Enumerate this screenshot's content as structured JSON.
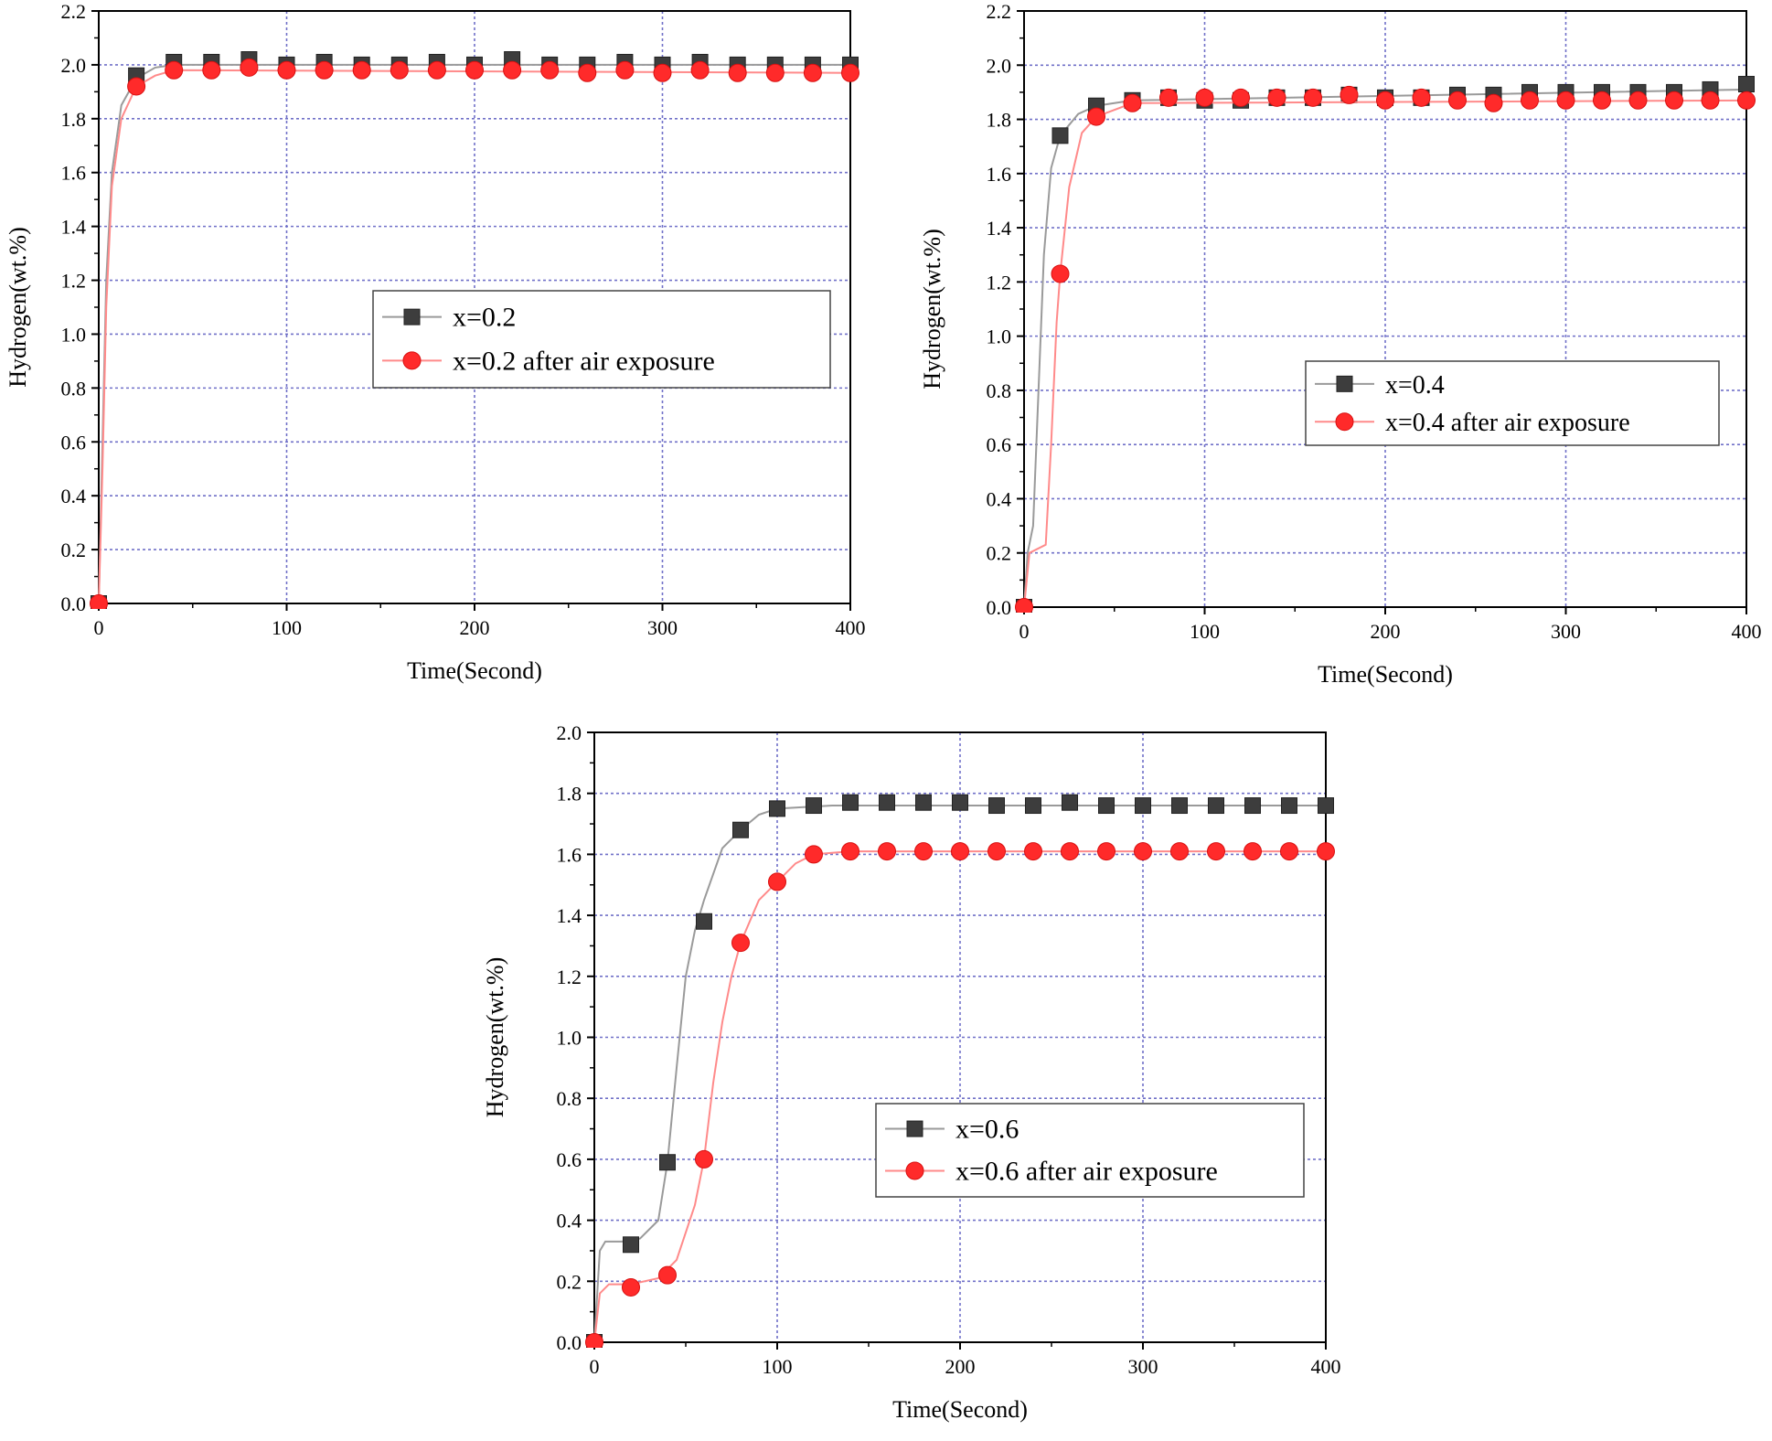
{
  "colors": {
    "series_base": "#3d3d3d",
    "series_base_line": "#9a9a9a",
    "series_exposed": "#ff2a2a",
    "series_exposed_line": "#ff8a8a",
    "grid": "#7070c8"
  },
  "chart_data": [
    {
      "type": "line",
      "xlabel": "Time(Second)",
      "ylabel": "Hydrogen(wt.%)",
      "xlim": [
        0,
        400
      ],
      "ylim": [
        0,
        2.2
      ],
      "xticks": [
        "0",
        "100",
        "200",
        "300",
        "400"
      ],
      "yticks": [
        "0.0",
        "0.2",
        "0.4",
        "0.6",
        "0.8",
        "1.0",
        "1.2",
        "1.4",
        "1.6",
        "1.8",
        "2.0",
        "2.2"
      ],
      "grid": true,
      "legend_position": "center-right",
      "markers_x": [
        0,
        20,
        40,
        60,
        80,
        100,
        120,
        140,
        160,
        180,
        200,
        220,
        240,
        260,
        280,
        300,
        320,
        340,
        360,
        380,
        400
      ],
      "series": [
        {
          "name": "x=0.2",
          "marker": "square",
          "values": [
            0.0,
            1.96,
            2.01,
            2.01,
            2.02,
            2.0,
            2.01,
            2.0,
            2.0,
            2.01,
            2.0,
            2.02,
            2.0,
            2.0,
            2.01,
            2.0,
            2.01,
            2.0,
            2.0,
            2.0,
            2.0
          ],
          "curve": [
            [
              0,
              0.0
            ],
            [
              2,
              0.6
            ],
            [
              4,
              1.2
            ],
            [
              7,
              1.6
            ],
            [
              12,
              1.85
            ],
            [
              20,
              1.95
            ],
            [
              30,
              1.99
            ],
            [
              40,
              2.0
            ],
            [
              400,
              2.0
            ]
          ]
        },
        {
          "name": "x=0.2 after air exposure",
          "marker": "circle",
          "values": [
            0.0,
            1.92,
            1.98,
            1.98,
            1.99,
            1.98,
            1.98,
            1.98,
            1.98,
            1.98,
            1.98,
            1.98,
            1.98,
            1.97,
            1.98,
            1.97,
            1.98,
            1.97,
            1.97,
            1.97,
            1.97
          ],
          "curve": [
            [
              0,
              0.0
            ],
            [
              2,
              0.5
            ],
            [
              4,
              1.1
            ],
            [
              7,
              1.55
            ],
            [
              12,
              1.8
            ],
            [
              20,
              1.92
            ],
            [
              30,
              1.96
            ],
            [
              40,
              1.98
            ],
            [
              400,
              1.97
            ]
          ]
        }
      ]
    },
    {
      "type": "line",
      "xlabel": "Time(Second)",
      "ylabel": "Hydrogen(wt.%)",
      "xlim": [
        0,
        400
      ],
      "ylim": [
        0,
        2.2
      ],
      "xticks": [
        "0",
        "100",
        "200",
        "300",
        "400"
      ],
      "yticks": [
        "0.0",
        "0.2",
        "0.4",
        "0.6",
        "0.8",
        "1.0",
        "1.2",
        "1.4",
        "1.6",
        "1.8",
        "2.0",
        "2.2"
      ],
      "grid": true,
      "legend_position": "center-right",
      "markers_x": [
        0,
        20,
        40,
        60,
        80,
        100,
        120,
        140,
        160,
        180,
        200,
        220,
        240,
        260,
        280,
        300,
        320,
        340,
        360,
        380,
        400
      ],
      "series": [
        {
          "name": "x=0.4",
          "marker": "square",
          "values": [
            0.0,
            1.74,
            1.85,
            1.87,
            1.88,
            1.87,
            1.87,
            1.88,
            1.88,
            1.89,
            1.88,
            1.88,
            1.89,
            1.89,
            1.9,
            1.9,
            1.9,
            1.9,
            1.9,
            1.91,
            1.93
          ],
          "curve": [
            [
              0,
              0.0
            ],
            [
              2,
              0.2
            ],
            [
              5,
              0.3
            ],
            [
              8,
              0.8
            ],
            [
              11,
              1.3
            ],
            [
              15,
              1.62
            ],
            [
              20,
              1.74
            ],
            [
              30,
              1.82
            ],
            [
              40,
              1.85
            ],
            [
              60,
              1.87
            ],
            [
              400,
              1.91
            ]
          ]
        },
        {
          "name": "x=0.4 after air exposure",
          "marker": "circle",
          "values": [
            0.0,
            1.23,
            1.81,
            1.86,
            1.88,
            1.88,
            1.88,
            1.88,
            1.88,
            1.89,
            1.87,
            1.88,
            1.87,
            1.86,
            1.87,
            1.87,
            1.87,
            1.87,
            1.87,
            1.87,
            1.87
          ],
          "curve": [
            [
              0,
              0.0
            ],
            [
              3,
              0.2
            ],
            [
              12,
              0.23
            ],
            [
              15,
              0.6
            ],
            [
              18,
              1.05
            ],
            [
              20,
              1.23
            ],
            [
              25,
              1.55
            ],
            [
              32,
              1.75
            ],
            [
              40,
              1.81
            ],
            [
              60,
              1.86
            ],
            [
              400,
              1.87
            ]
          ]
        }
      ]
    },
    {
      "type": "line",
      "xlabel": "Time(Second)",
      "ylabel": "Hydrogen(wt.%)",
      "xlim": [
        0,
        400
      ],
      "ylim": [
        0,
        2.0
      ],
      "xticks": [
        "0",
        "100",
        "200",
        "300",
        "400"
      ],
      "yticks": [
        "0.0",
        "0.2",
        "0.4",
        "0.6",
        "0.8",
        "1.0",
        "1.2",
        "1.4",
        "1.6",
        "1.8",
        "2.0"
      ],
      "grid": true,
      "legend_position": "bottom-right",
      "markers_x": [
        0,
        20,
        40,
        60,
        80,
        100,
        120,
        140,
        160,
        180,
        200,
        220,
        240,
        260,
        280,
        300,
        320,
        340,
        360,
        380,
        400
      ],
      "series": [
        {
          "name": "x=0.6",
          "marker": "square",
          "values": [
            0.0,
            0.32,
            0.59,
            1.38,
            1.68,
            1.75,
            1.76,
            1.77,
            1.77,
            1.77,
            1.77,
            1.76,
            1.76,
            1.77,
            1.76,
            1.76,
            1.76,
            1.76,
            1.76,
            1.76,
            1.76
          ],
          "curve": [
            [
              0,
              0.0
            ],
            [
              3,
              0.3
            ],
            [
              6,
              0.33
            ],
            [
              15,
              0.33
            ],
            [
              25,
              0.34
            ],
            [
              35,
              0.4
            ],
            [
              40,
              0.59
            ],
            [
              45,
              0.9
            ],
            [
              50,
              1.2
            ],
            [
              55,
              1.35
            ],
            [
              60,
              1.45
            ],
            [
              70,
              1.62
            ],
            [
              80,
              1.68
            ],
            [
              90,
              1.73
            ],
            [
              100,
              1.75
            ],
            [
              130,
              1.76
            ],
            [
              400,
              1.76
            ]
          ]
        },
        {
          "name": "x=0.6 after air exposure",
          "marker": "circle",
          "values": [
            0.0,
            0.18,
            0.22,
            0.6,
            1.31,
            1.51,
            1.6,
            1.61,
            1.61,
            1.61,
            1.61,
            1.61,
            1.61,
            1.61,
            1.61,
            1.61,
            1.61,
            1.61,
            1.61,
            1.61,
            1.61
          ],
          "curve": [
            [
              0,
              0.0
            ],
            [
              3,
              0.16
            ],
            [
              8,
              0.19
            ],
            [
              20,
              0.19
            ],
            [
              35,
              0.21
            ],
            [
              45,
              0.27
            ],
            [
              55,
              0.45
            ],
            [
              60,
              0.6
            ],
            [
              65,
              0.85
            ],
            [
              70,
              1.05
            ],
            [
              75,
              1.2
            ],
            [
              80,
              1.31
            ],
            [
              90,
              1.45
            ],
            [
              100,
              1.51
            ],
            [
              110,
              1.57
            ],
            [
              120,
              1.6
            ],
            [
              140,
              1.61
            ],
            [
              400,
              1.61
            ]
          ]
        }
      ]
    }
  ]
}
